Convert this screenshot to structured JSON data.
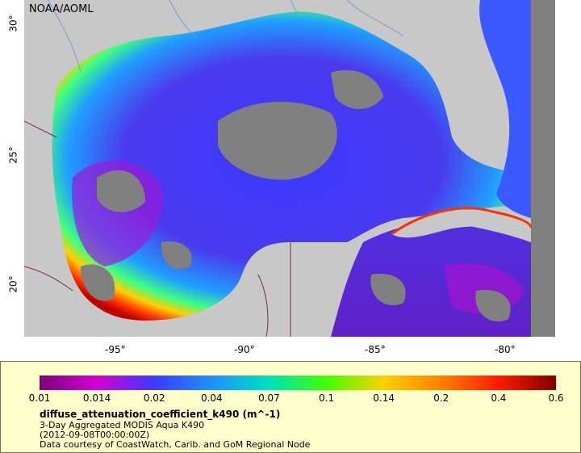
{
  "credit": "NOAA/AOML",
  "map": {
    "x_ticks": [
      "-95°",
      "-90°",
      "-85°",
      "-80°"
    ],
    "y_ticks": [
      "30°",
      "25°",
      "20°"
    ],
    "colors": {
      "land": "#c8c8c8",
      "no_data": "#808080",
      "rivers": "#6fa0d8",
      "borders": "#7a2a5a"
    }
  },
  "legend": {
    "colorbar_labels": [
      "0.01",
      "0.014",
      "0.02",
      "0.04",
      "0.07",
      "0.1",
      "0.14",
      "0.2",
      "0.4",
      "0.6"
    ],
    "colorbar_stops": [
      "#7a007a",
      "#d400d4",
      "#3a3aff",
      "#1f90ff",
      "#00e0c0",
      "#40ff00",
      "#ffd000",
      "#ff8000",
      "#ff1a00",
      "#800000"
    ],
    "variable": "diffuse_attenuation_coefficient_k490 (m^-1)",
    "product": "3-Day Aggregated MODIS Aqua K490",
    "date": "(2012-09-08T00:00:00Z)",
    "source": "Data courtesy of CoastWatch, Carib. and GoM Regional Node"
  }
}
